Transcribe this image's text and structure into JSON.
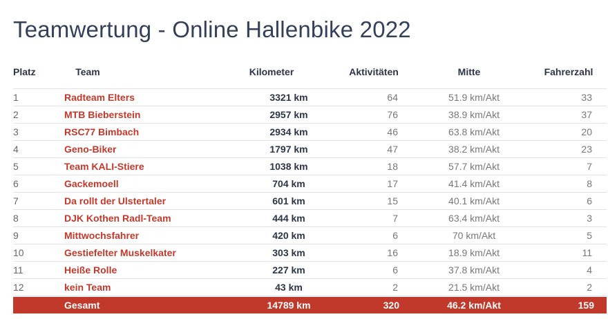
{
  "header": {
    "title": "Teamwertung - Online Hallenbike 2022"
  },
  "table": {
    "headers": [
      "Platz",
      "Team",
      "Kilometer",
      "Aktivitäten",
      "Mitte",
      "Fahrerzahl"
    ],
    "rows": [
      [
        "1",
        "Radteam Elters",
        "3321 km",
        "64",
        "51.9 km/Akt",
        "33"
      ],
      [
        "2",
        "MTB Bieberstein",
        "2957 km",
        "76",
        "38.9 km/Akt",
        "37"
      ],
      [
        "3",
        "RSC77 Bimbach",
        "2934 km",
        "46",
        "63.8 km/Akt",
        "20"
      ],
      [
        "4",
        "Geno-Biker",
        "1797 km",
        "47",
        "38.2 km/Akt",
        "23"
      ],
      [
        "5",
        "Team KALI-Stiere",
        "1038 km",
        "18",
        "57.7 km/Akt",
        "7"
      ],
      [
        "6",
        "Gackemoell",
        "704 km",
        "17",
        "41.4 km/Akt",
        "8"
      ],
      [
        "7",
        "Da rollt der Ulstertaler",
        "601 km",
        "15",
        "40.1 km/Akt",
        "6"
      ],
      [
        "8",
        "DJK Kothen Radl-Team",
        "444 km",
        "7",
        "63.4 km/Akt",
        "3"
      ],
      [
        "9",
        "Mittwochsfahrer",
        "420 km",
        "6",
        "70 km/Akt",
        "5"
      ],
      [
        "10",
        "Gestiefelter Muskelkater",
        "303 km",
        "16",
        "18.9 km/Akt",
        "11"
      ],
      [
        "11",
        "Heiße Rolle",
        "227 km",
        "6",
        "37.8 km/Akt",
        "4"
      ],
      [
        "12",
        "kein Team",
        "43 km",
        "2",
        "21.5 km/Akt",
        "2"
      ]
    ],
    "footer": [
      "Gesamt",
      "14789 km",
      "320",
      "46.2 km/Akt",
      "159"
    ]
  }
}
